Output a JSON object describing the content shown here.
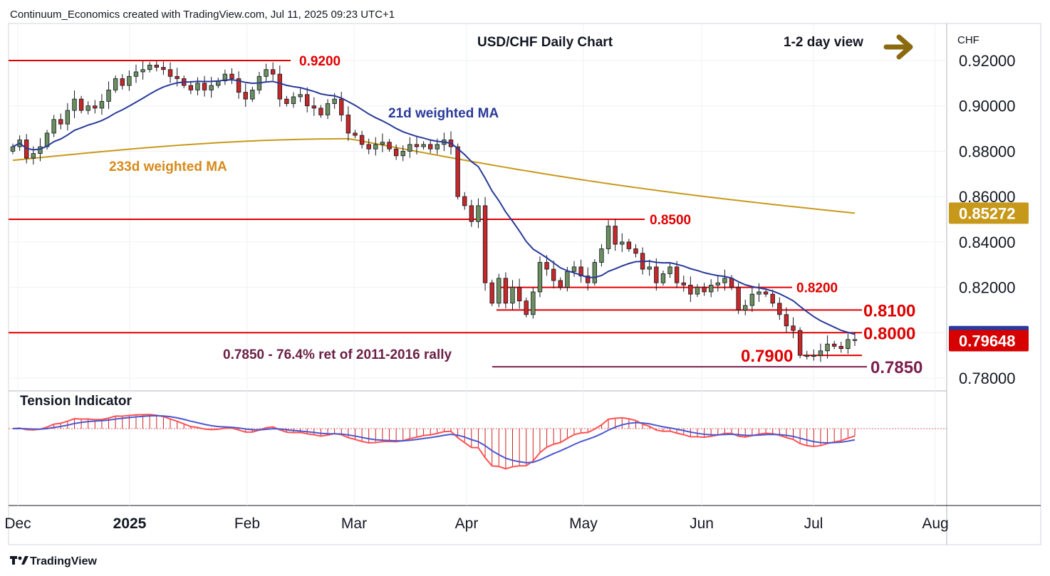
{
  "header": {
    "attribution": "Continuum_Economics created with TradingView.com, Jul 11, 2025 09:23 UTC+1",
    "chart_title": "USD/CHF Daily Chart",
    "view_label": "1-2 day view",
    "currency": "CHF"
  },
  "footer": {
    "brand": "TradingView"
  },
  "colors": {
    "up_candle": "#6b8f5e",
    "down_candle": "#c62828",
    "ma21": "#2a3a9a",
    "ma233": "#c7991a",
    "level_line": "#e00000",
    "fib_line": "#7a1f4f",
    "arrow": "#8b6a10"
  },
  "chart_data": [
    {
      "type": "line",
      "title": "USD/CHF Daily Chart",
      "y_axis": {
        "ticks": [
          "0.92000",
          "0.90000",
          "0.88000",
          "0.86000",
          "0.84000",
          "0.82000",
          "0.80000",
          "0.78000"
        ],
        "ylim": [
          0.775,
          0.936
        ]
      },
      "x_axis": {
        "ticks": [
          "Dec",
          "2025",
          "Feb",
          "Mar",
          "Apr",
          "May",
          "Jun",
          "Jul",
          "Aug"
        ]
      },
      "badges": [
        {
          "label": "0.85272",
          "value": 0.85272,
          "color": "#c7991a"
        },
        {
          "label": "0.79827",
          "value": 0.79827,
          "color": "#2a3a9a"
        },
        {
          "label": "0.79648",
          "value": 0.79648,
          "color": "#d60000"
        }
      ],
      "levels": [
        {
          "label": "0.9200",
          "value": 0.92,
          "size": "small"
        },
        {
          "label": "0.8500",
          "value": 0.85,
          "size": "small"
        },
        {
          "label": "0.8200",
          "value": 0.82,
          "size": "small"
        },
        {
          "label": "0.8100",
          "value": 0.81,
          "size": "large"
        },
        {
          "label": "0.8000",
          "value": 0.8,
          "size": "large"
        },
        {
          "label": "0.7900",
          "value": 0.79,
          "size": "large"
        }
      ],
      "fib_level": {
        "value": 0.785,
        "label": "0.7850",
        "note": "0.7850 - 76.4% ret of 2011-2016 rally"
      },
      "series_labels": {
        "ma21": "21d weighted MA",
        "ma233": "233d weighted MA"
      },
      "series": [
        {
          "name": "USD/CHF",
          "kind": "candlestick",
          "close": [
            0.882,
            0.885,
            0.877,
            0.879,
            0.882,
            0.888,
            0.894,
            0.892,
            0.898,
            0.903,
            0.898,
            0.9,
            0.899,
            0.902,
            0.907,
            0.912,
            0.909,
            0.913,
            0.915,
            0.916,
            0.918,
            0.917,
            0.916,
            0.913,
            0.912,
            0.909,
            0.907,
            0.91,
            0.907,
            0.909,
            0.911,
            0.914,
            0.912,
            0.906,
            0.903,
            0.907,
            0.913,
            0.916,
            0.914,
            0.903,
            0.901,
            0.904,
            0.905,
            0.9,
            0.899,
            0.896,
            0.901,
            0.903,
            0.896,
            0.888,
            0.887,
            0.883,
            0.881,
            0.883,
            0.884,
            0.881,
            0.878,
            0.88,
            0.883,
            0.882,
            0.883,
            0.881,
            0.883,
            0.885,
            0.882,
            0.86,
            0.856,
            0.849,
            0.856,
            0.822,
            0.813,
            0.824,
            0.813,
            0.82,
            0.814,
            0.808,
            0.818,
            0.831,
            0.828,
            0.823,
            0.82,
            0.827,
            0.829,
            0.825,
            0.822,
            0.831,
            0.837,
            0.847,
            0.839,
            0.84,
            0.837,
            0.835,
            0.828,
            0.829,
            0.822,
            0.826,
            0.829,
            0.822,
            0.821,
            0.817,
            0.82,
            0.818,
            0.821,
            0.822,
            0.824,
            0.82,
            0.81,
            0.812,
            0.817,
            0.818,
            0.817,
            0.813,
            0.808,
            0.803,
            0.801,
            0.79,
            0.79,
            0.79,
            0.792,
            0.795,
            0.794,
            0.793,
            0.797,
            0.797
          ]
        }
      ]
    },
    {
      "type": "area",
      "title": "Tension Indicator",
      "series": []
    }
  ]
}
